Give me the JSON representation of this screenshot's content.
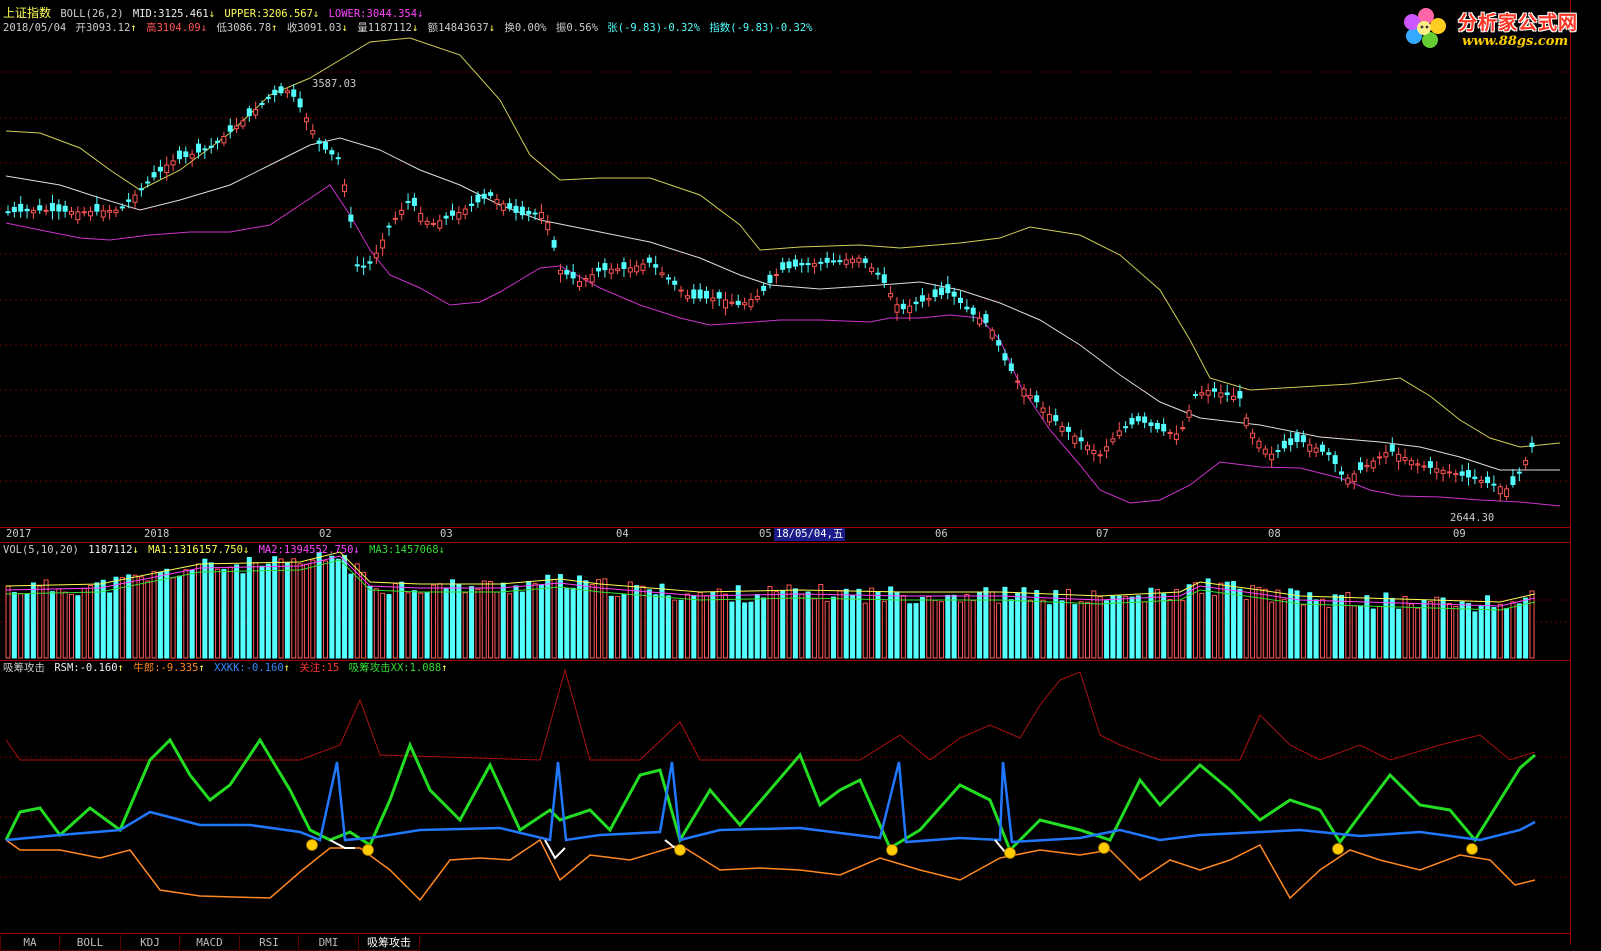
{
  "main": {
    "index_name": "上证指数",
    "indicator": "BOLL(26,2)",
    "mid": "MID:3125.461",
    "upper": "UPPER:3206.567",
    "lower": "LOWER:3044.354",
    "date": "2018/05/04",
    "open": "开3093.12",
    "high": "高3104.09",
    "low": "低3086.78",
    "close": "收3091.03",
    "volume": "量1187112",
    "amount": "额14843637",
    "turnover": "换0.00%",
    "amplitude": "振0.56%",
    "change": "张(-9.83)-0.32%",
    "index_change": "指数(-9.83)-0.32%",
    "peak_label": "3587.03",
    "trough_label": "2644.30"
  },
  "date_axis": {
    "ticks": [
      "2017",
      "2018",
      "02",
      "03",
      "04",
      "05",
      "06",
      "07",
      "08",
      "09"
    ],
    "cursor": "18/05/04,五"
  },
  "volume": {
    "title": "VOL(5,10,20)",
    "value": "1187112",
    "ma1": "MA1:1316157.750",
    "ma2": "MA2:1394552.750",
    "ma3": "MA3:1457068"
  },
  "indicator_panel": {
    "name": "吸筹攻击",
    "rsm": "RSM:-0.160",
    "niulang": "牛郎:-9.335",
    "xxkk": "XXKK:-0.160",
    "guanzhu": "关注:15",
    "xx": "吸筹攻击XX:1.088"
  },
  "tabs": [
    "MA",
    "BOLL",
    "KDJ",
    "MACD",
    "RSI",
    "DMI",
    "吸筹攻击"
  ],
  "logo": {
    "title": "分析家公式网",
    "url": "www.88gs.com"
  },
  "colors": {
    "up": "#ff5555",
    "down": "#54ffff",
    "upper": "#cfcf5a",
    "mid": "#dddddd",
    "lower": "#cc33cc",
    "green": "#22dd22",
    "blue": "#2277ff",
    "orange": "#ff8822",
    "red": "#aa1111"
  }
}
